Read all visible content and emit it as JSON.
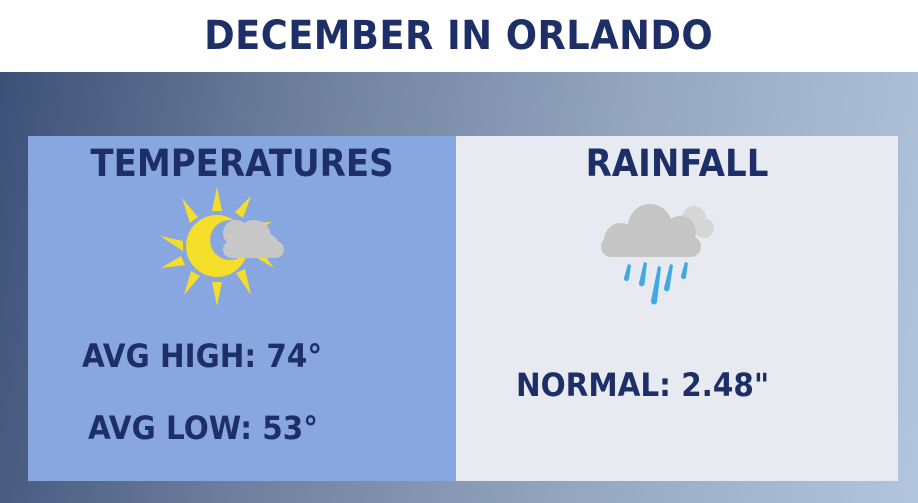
{
  "header": {
    "title": "DECEMBER IN ORLANDO"
  },
  "temperatures": {
    "heading": "TEMPERATURES",
    "icon": "sun-cloud-icon",
    "avg_high": "AVG HIGH: 74°",
    "avg_low": "AVG LOW: 53°"
  },
  "rainfall": {
    "heading": "RAINFALL",
    "icon": "rain-cloud-icon",
    "normal": "NORMAL: 2.48\""
  },
  "colors": {
    "navy_text": "#1d2f66",
    "temperature_panel": "#88a7e0",
    "rainfall_panel": "#e7eaf0",
    "sun": "#f5de2a",
    "cloud": "#c8c8c8",
    "raindrop": "#3fa9e0"
  }
}
